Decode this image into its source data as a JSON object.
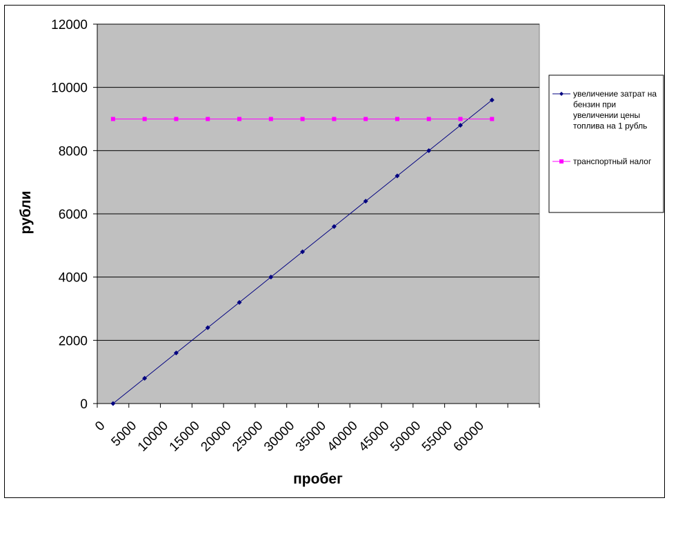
{
  "chart_data": {
    "type": "line",
    "xlabel": "пробег",
    "ylabel": "рубли",
    "ylim": [
      0,
      12000
    ],
    "yticks": [
      0,
      2000,
      4000,
      6000,
      8000,
      10000,
      12000
    ],
    "categories": [
      "0",
      "5000",
      "10000",
      "15000",
      "20000",
      "25000",
      "30000",
      "35000",
      "40000",
      "45000",
      "50000",
      "55000",
      "60000"
    ],
    "grid": "horizontal major gridlines",
    "plot_background": "#c0c0c0",
    "legend_position": "right",
    "series": [
      {
        "name": "увеличение затрат на бензин при увеличении цены топлива на 1 рубль",
        "legend_lines": [
          "увеличение затрат на",
          "бензин при",
          "увеличении цены",
          "топлива на 1 рубль"
        ],
        "color": "#000080",
        "marker": "diamond",
        "values": [
          0,
          800,
          1600,
          2400,
          3200,
          4000,
          4800,
          5600,
          6400,
          7200,
          8000,
          8800,
          9600
        ]
      },
      {
        "name": "транспортный налог",
        "legend_lines": [
          "транспортный налог"
        ],
        "color": "#ff00ff",
        "marker": "square",
        "values": [
          9000,
          9000,
          9000,
          9000,
          9000,
          9000,
          9000,
          9000,
          9000,
          9000,
          9000,
          9000,
          9000
        ]
      }
    ]
  }
}
